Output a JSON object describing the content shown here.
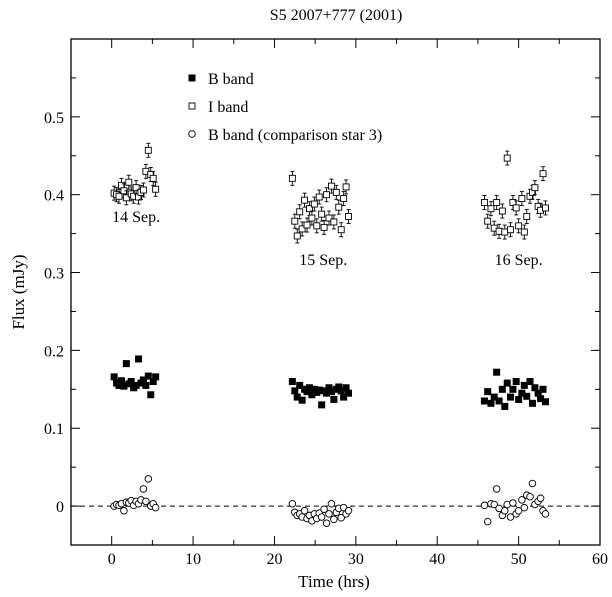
{
  "chart_data": {
    "type": "scatter",
    "title": "S5 2007+777 (2001)",
    "xlabel": "Time (hrs)",
    "ylabel": "Flux (mJy)",
    "xlim": [
      -5,
      60
    ],
    "ylim": [
      -0.05,
      0.6
    ],
    "xticks": [
      "0",
      "10",
      "20",
      "30",
      "40",
      "50",
      "60"
    ],
    "yticks": [
      "0",
      "0.1",
      "0.2",
      "0.3",
      "0.4",
      "0.5"
    ],
    "legend_position": "top-left",
    "annotations": [
      {
        "text": "14 Sep.",
        "x": 3,
        "y": 0.365
      },
      {
        "text": "15 Sep.",
        "x": 26,
        "y": 0.31
      },
      {
        "text": "16 Sep.",
        "x": 50,
        "y": 0.31
      }
    ],
    "reference_line": {
      "y": 0,
      "style": "dashed"
    },
    "series": [
      {
        "name": "B band",
        "marker": "filled-square",
        "points": [
          [
            0.3,
            0.166
          ],
          [
            0.6,
            0.158
          ],
          [
            0.9,
            0.155
          ],
          [
            1.2,
            0.161
          ],
          [
            1.5,
            0.154
          ],
          [
            1.8,
            0.183
          ],
          [
            2.1,
            0.157
          ],
          [
            2.4,
            0.16
          ],
          [
            2.7,
            0.152
          ],
          [
            3.0,
            0.155
          ],
          [
            3.3,
            0.189
          ],
          [
            3.6,
            0.158
          ],
          [
            3.9,
            0.162
          ],
          [
            4.2,
            0.155
          ],
          [
            4.5,
            0.167
          ],
          [
            4.8,
            0.143
          ],
          [
            5.1,
            0.16
          ],
          [
            5.4,
            0.166
          ],
          [
            22.2,
            0.16
          ],
          [
            22.5,
            0.148
          ],
          [
            22.8,
            0.14
          ],
          [
            23.1,
            0.155
          ],
          [
            23.4,
            0.136
          ],
          [
            23.7,
            0.15
          ],
          [
            24.0,
            0.147
          ],
          [
            24.3,
            0.152
          ],
          [
            24.6,
            0.143
          ],
          [
            24.9,
            0.15
          ],
          [
            25.2,
            0.146
          ],
          [
            25.5,
            0.149
          ],
          [
            25.8,
            0.13
          ],
          [
            26.1,
            0.148
          ],
          [
            26.4,
            0.145
          ],
          [
            26.7,
            0.152
          ],
          [
            27.0,
            0.147
          ],
          [
            27.3,
            0.137
          ],
          [
            27.6,
            0.15
          ],
          [
            27.9,
            0.153
          ],
          [
            28.2,
            0.148
          ],
          [
            28.5,
            0.14
          ],
          [
            28.8,
            0.152
          ],
          [
            29.1,
            0.145
          ],
          [
            45.8,
            0.135
          ],
          [
            46.2,
            0.147
          ],
          [
            46.6,
            0.132
          ],
          [
            47.0,
            0.14
          ],
          [
            47.3,
            0.172
          ],
          [
            47.6,
            0.135
          ],
          [
            48.0,
            0.15
          ],
          [
            48.3,
            0.128
          ],
          [
            48.6,
            0.158
          ],
          [
            49.0,
            0.14
          ],
          [
            49.3,
            0.15
          ],
          [
            49.7,
            0.16
          ],
          [
            50.0,
            0.137
          ],
          [
            50.4,
            0.145
          ],
          [
            50.7,
            0.155
          ],
          [
            51.0,
            0.141
          ],
          [
            51.4,
            0.16
          ],
          [
            51.7,
            0.132
          ],
          [
            52.0,
            0.152
          ],
          [
            52.4,
            0.145
          ],
          [
            52.7,
            0.138
          ],
          [
            53.0,
            0.15
          ],
          [
            53.3,
            0.134
          ]
        ]
      },
      {
        "name": "I band",
        "marker": "open-square-errorbar",
        "points": [
          [
            0.3,
            0.402
          ],
          [
            0.6,
            0.4
          ],
          [
            0.9,
            0.398
          ],
          [
            1.2,
            0.412
          ],
          [
            1.5,
            0.405
          ],
          [
            1.8,
            0.396
          ],
          [
            2.1,
            0.416
          ],
          [
            2.4,
            0.401
          ],
          [
            2.7,
            0.398
          ],
          [
            3.0,
            0.409
          ],
          [
            3.3,
            0.397
          ],
          [
            3.6,
            0.403
          ],
          [
            3.9,
            0.406
          ],
          [
            4.2,
            0.43
          ],
          [
            4.5,
            0.457
          ],
          [
            4.8,
            0.426
          ],
          [
            5.1,
            0.421
          ],
          [
            5.4,
            0.407
          ],
          [
            22.2,
            0.421
          ],
          [
            22.5,
            0.366
          ],
          [
            22.8,
            0.347
          ],
          [
            23.1,
            0.378
          ],
          [
            23.4,
            0.356
          ],
          [
            23.7,
            0.393
          ],
          [
            24.0,
            0.361
          ],
          [
            24.3,
            0.382
          ],
          [
            24.6,
            0.37
          ],
          [
            24.9,
            0.388
          ],
          [
            25.2,
            0.36
          ],
          [
            25.5,
            0.397
          ],
          [
            25.8,
            0.375
          ],
          [
            26.1,
            0.358
          ],
          [
            26.4,
            0.4
          ],
          [
            26.7,
            0.37
          ],
          [
            27.0,
            0.411
          ],
          [
            27.3,
            0.365
          ],
          [
            27.6,
            0.403
          ],
          [
            27.9,
            0.384
          ],
          [
            28.2,
            0.355
          ],
          [
            28.5,
            0.395
          ],
          [
            28.8,
            0.41
          ],
          [
            29.1,
            0.372
          ],
          [
            45.8,
            0.39
          ],
          [
            46.2,
            0.366
          ],
          [
            46.6,
            0.382
          ],
          [
            47.0,
            0.357
          ],
          [
            47.3,
            0.39
          ],
          [
            47.6,
            0.353
          ],
          [
            48.0,
            0.379
          ],
          [
            48.3,
            0.352
          ],
          [
            48.6,
            0.447
          ],
          [
            49.0,
            0.355
          ],
          [
            49.3,
            0.39
          ],
          [
            49.7,
            0.383
          ],
          [
            50.0,
            0.36
          ],
          [
            50.4,
            0.395
          ],
          [
            50.7,
            0.352
          ],
          [
            51.0,
            0.372
          ],
          [
            51.4,
            0.398
          ],
          [
            51.7,
            0.403
          ],
          [
            52.0,
            0.409
          ],
          [
            52.4,
            0.385
          ],
          [
            52.7,
            0.38
          ],
          [
            53.0,
            0.427
          ],
          [
            53.3,
            0.383
          ]
        ]
      },
      {
        "name": "B band (comparison star 3)",
        "marker": "open-circle",
        "points": [
          [
            0.3,
            0.0
          ],
          [
            0.6,
            0.002
          ],
          [
            0.9,
            0.001
          ],
          [
            1.2,
            0.003
          ],
          [
            1.5,
            -0.006
          ],
          [
            1.8,
            0.005
          ],
          [
            2.1,
            0.004
          ],
          [
            2.4,
            0.007
          ],
          [
            2.7,
            0.001
          ],
          [
            3.0,
            0.006
          ],
          [
            3.3,
            0.003
          ],
          [
            3.6,
            0.008
          ],
          [
            3.9,
            0.022
          ],
          [
            4.2,
            0.006
          ],
          [
            4.5,
            0.035
          ],
          [
            4.8,
            0.0
          ],
          [
            5.1,
            0.003
          ],
          [
            5.4,
            -0.002
          ],
          [
            22.2,
            0.003
          ],
          [
            22.5,
            -0.008
          ],
          [
            22.8,
            -0.012
          ],
          [
            23.1,
            -0.01
          ],
          [
            23.4,
            -0.014
          ],
          [
            23.7,
            -0.006
          ],
          [
            24.0,
            -0.016
          ],
          [
            24.3,
            -0.012
          ],
          [
            24.6,
            -0.019
          ],
          [
            24.9,
            -0.01
          ],
          [
            25.2,
            -0.016
          ],
          [
            25.5,
            -0.009
          ],
          [
            25.8,
            -0.014
          ],
          [
            26.1,
            -0.004
          ],
          [
            26.4,
            -0.022
          ],
          [
            26.7,
            -0.01
          ],
          [
            27.0,
            0.003
          ],
          [
            27.3,
            -0.017
          ],
          [
            27.6,
            -0.008
          ],
          [
            27.9,
            -0.003
          ],
          [
            28.2,
            -0.015
          ],
          [
            28.5,
            -0.002
          ],
          [
            28.8,
            -0.01
          ],
          [
            29.1,
            -0.006
          ],
          [
            45.8,
            0.001
          ],
          [
            46.2,
            -0.02
          ],
          [
            46.6,
            0.003
          ],
          [
            47.0,
            0.002
          ],
          [
            47.3,
            0.022
          ],
          [
            47.6,
            -0.003
          ],
          [
            48.0,
            -0.012
          ],
          [
            48.3,
            -0.006
          ],
          [
            48.6,
            0.002
          ],
          [
            49.0,
            -0.014
          ],
          [
            49.3,
            0.004
          ],
          [
            49.7,
            -0.01
          ],
          [
            50.0,
            -0.006
          ],
          [
            50.4,
            0.008
          ],
          [
            50.7,
            -0.002
          ],
          [
            51.0,
            0.014
          ],
          [
            51.4,
            0.012
          ],
          [
            51.7,
            0.029
          ],
          [
            52.0,
            0.002
          ],
          [
            52.4,
            0.006
          ],
          [
            52.7,
            0.01
          ],
          [
            53.0,
            -0.006
          ],
          [
            53.3,
            -0.01
          ]
        ]
      }
    ]
  }
}
